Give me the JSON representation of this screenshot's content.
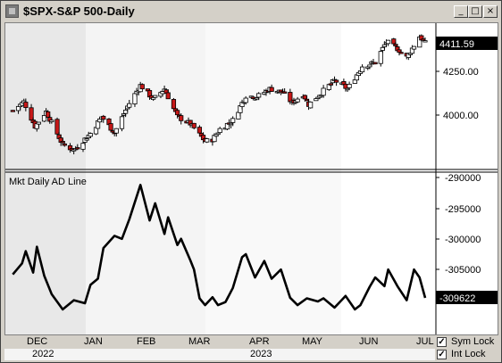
{
  "window": {
    "title": "$SPX-S&P 500-Daily",
    "controls": [
      "_",
      "□",
      "×"
    ]
  },
  "price_panel": {
    "price_tag": "4411.59",
    "y_ticks": [
      "4250.00",
      "4000.00"
    ],
    "colors": {
      "up": "#ffffff",
      "down": "#c81818",
      "outline": "#000000",
      "tag_bg": "#000000"
    }
  },
  "ad_panel": {
    "label": "Mkt Daily AD Line",
    "value_tag": "-309622",
    "y_ticks": [
      "-290000",
      "-295000",
      "-300000",
      "-305000"
    ]
  },
  "time_axis": {
    "months": [
      "DEC",
      "JAN",
      "FEB",
      "MAR",
      "APR",
      "MAY",
      "JUN",
      "JUL"
    ],
    "years": [
      "2022",
      "2023"
    ]
  },
  "options": {
    "sym_lock": {
      "label": "Sym Lock",
      "checked": true
    },
    "int_lock": {
      "label": "Int Lock",
      "checked": true
    }
  },
  "chart_data": [
    {
      "type": "candlestick",
      "title": "$SPX-S&P 500-Daily",
      "y_ticks": [
        4250,
        4000
      ],
      "last_value": 4411.59,
      "close_path": [
        [
          "2022-11-25",
          4026
        ],
        [
          "2022-12-01",
          4076
        ],
        [
          "2022-12-07",
          3935
        ],
        [
          "2022-12-13",
          4020
        ],
        [
          "2022-12-22",
          3830
        ],
        [
          "2022-12-28",
          3800
        ],
        [
          "2023-01-06",
          3895
        ],
        [
          "2023-01-12",
          3990
        ],
        [
          "2023-01-19",
          3900
        ],
        [
          "2023-01-26",
          4050
        ],
        [
          "2023-02-02",
          4170
        ],
        [
          "2023-02-09",
          4090
        ],
        [
          "2023-02-15",
          4150
        ],
        [
          "2023-02-22",
          3990
        ],
        [
          "2023-03-01",
          3950
        ],
        [
          "2023-03-09",
          3850
        ],
        [
          "2023-03-13",
          3860
        ],
        [
          "2023-03-17",
          3920
        ],
        [
          "2023-03-24",
          3970
        ],
        [
          "2023-03-31",
          4110
        ],
        [
          "2023-04-06",
          4105
        ],
        [
          "2023-04-13",
          4150
        ],
        [
          "2023-04-20",
          4130
        ],
        [
          "2023-04-25",
          4070
        ],
        [
          "2023-05-01",
          4120
        ],
        [
          "2023-05-04",
          4060
        ],
        [
          "2023-05-11",
          4130
        ],
        [
          "2023-05-18",
          4198
        ],
        [
          "2023-05-25",
          4150
        ],
        [
          "2023-06-02",
          4280
        ],
        [
          "2023-06-09",
          4300
        ],
        [
          "2023-06-15",
          4420
        ],
        [
          "2023-06-21",
          4380
        ],
        [
          "2023-06-26",
          4330
        ],
        [
          "2023-07-03",
          4450
        ],
        [
          "2023-07-06",
          4411.59
        ]
      ]
    },
    {
      "type": "line",
      "title": "Mkt Daily AD Line",
      "y_ticks": [
        -290000,
        -295000,
        -300000,
        -305000
      ],
      "last_value": -309622,
      "series": [
        {
          "values": [
            [
              "2022-11-25",
              -305800
            ],
            [
              "2022-11-30",
              -304000
            ],
            [
              "2022-12-02",
              -302000
            ],
            [
              "2022-12-06",
              -305500
            ],
            [
              "2022-12-08",
              -301300
            ],
            [
              "2022-12-12",
              -306000
            ],
            [
              "2022-12-16",
              -309000
            ],
            [
              "2022-12-22",
              -311500
            ],
            [
              "2022-12-28",
              -310000
            ],
            [
              "2023-01-03",
              -310500
            ],
            [
              "2023-01-06",
              -307500
            ],
            [
              "2023-01-10",
              -306500
            ],
            [
              "2023-01-13",
              -301500
            ],
            [
              "2023-01-19",
              -299500
            ],
            [
              "2023-01-23",
              -300000
            ],
            [
              "2023-01-27",
              -296800
            ],
            [
              "2023-02-02",
              -291200
            ],
            [
              "2023-02-07",
              -297000
            ],
            [
              "2023-02-10",
              -294200
            ],
            [
              "2023-02-15",
              -299200
            ],
            [
              "2023-02-17",
              -296500
            ],
            [
              "2023-02-22",
              -301000
            ],
            [
              "2023-02-24",
              -300000
            ],
            [
              "2023-03-01",
              -303500
            ],
            [
              "2023-03-03",
              -305000
            ],
            [
              "2023-03-06",
              -309700
            ],
            [
              "2023-03-09",
              -310800
            ],
            [
              "2023-03-13",
              -309500
            ],
            [
              "2023-03-16",
              -310800
            ],
            [
              "2023-03-20",
              -310300
            ],
            [
              "2023-03-24",
              -308000
            ],
            [
              "2023-03-29",
              -303000
            ],
            [
              "2023-03-31",
              -302500
            ],
            [
              "2023-04-05",
              -306300
            ],
            [
              "2023-04-10",
              -303600
            ],
            [
              "2023-04-14",
              -306500
            ],
            [
              "2023-04-19",
              -305000
            ],
            [
              "2023-04-24",
              -309600
            ],
            [
              "2023-04-28",
              -310800
            ],
            [
              "2023-05-03",
              -309700
            ],
            [
              "2023-05-09",
              -310200
            ],
            [
              "2023-05-12",
              -309700
            ],
            [
              "2023-05-18",
              -311200
            ],
            [
              "2023-05-24",
              -309300
            ],
            [
              "2023-05-29",
              -311500
            ],
            [
              "2023-06-01",
              -310800
            ],
            [
              "2023-06-06",
              -307800
            ],
            [
              "2023-06-09",
              -306300
            ],
            [
              "2023-06-14",
              -307700
            ],
            [
              "2023-06-16",
              -305000
            ],
            [
              "2023-06-21",
              -307700
            ],
            [
              "2023-06-26",
              -310000
            ],
            [
              "2023-06-30",
              -305000
            ],
            [
              "2023-07-03",
              -306300
            ],
            [
              "2023-07-06",
              -309622
            ]
          ]
        }
      ]
    }
  ]
}
